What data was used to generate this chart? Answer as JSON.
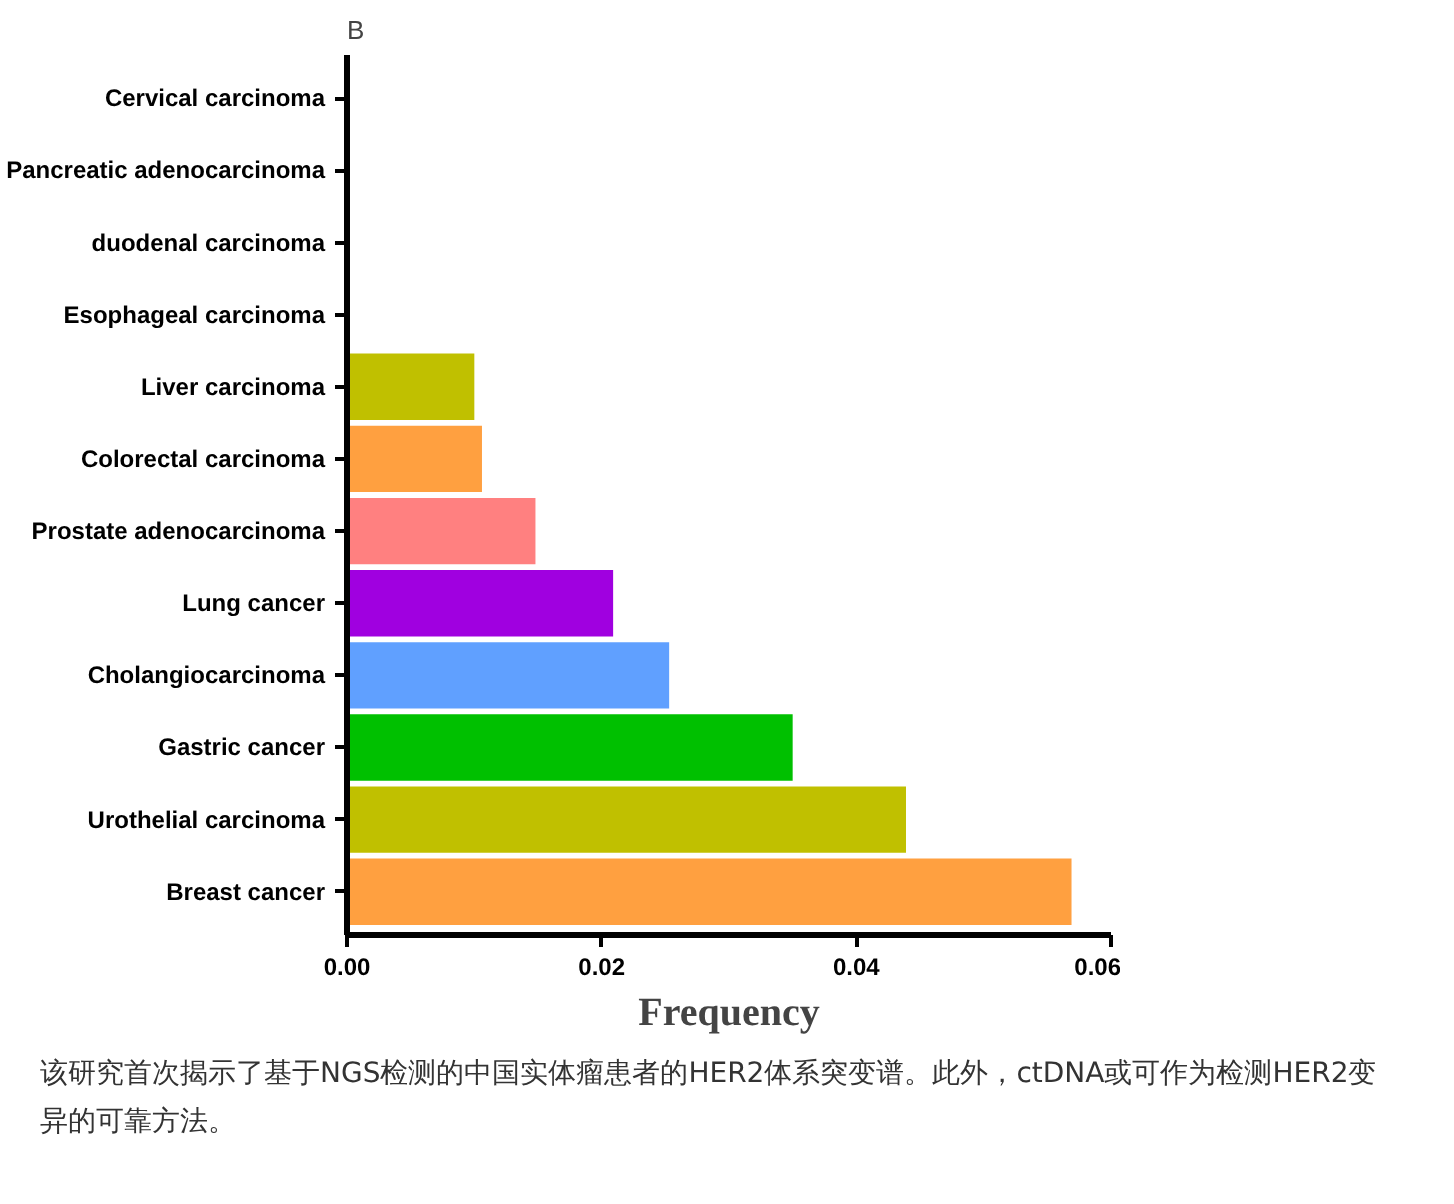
{
  "chart_data": {
    "type": "bar",
    "orientation": "horizontal",
    "title": "B",
    "xlabel": "Frequency",
    "categories": [
      "Cervical carcinoma",
      "Pancreatic adenocarcinoma",
      "duodenal carcinoma",
      "Esophageal carcinoma",
      "Liver carcinoma",
      "Colorectal carcinoma",
      "Prostate adenocarcinoma",
      "Lung cancer",
      "Cholangiocarcinoma",
      "Gastric cancer",
      "Urothelial carcinoma",
      "Breast cancer"
    ],
    "values": [
      0,
      0,
      0,
      0,
      0.01,
      0.0106,
      0.0148,
      0.0209,
      0.0253,
      0.035,
      0.0439,
      0.0569
    ],
    "colors": [
      "#c0c000",
      "#ffa040",
      "#ff8080",
      "#a000e0",
      "#c0c000",
      "#ffa040",
      "#ff8080",
      "#a000e0",
      "#60a0ff",
      "#00c000",
      "#c0c000",
      "#ffa040"
    ],
    "xlim": [
      0,
      0.06
    ],
    "xticks": [
      {
        "value": 0,
        "label": "0.00"
      },
      {
        "value": 0.02,
        "label": "0.02"
      },
      {
        "value": 0.04,
        "label": "0.04"
      },
      {
        "value": 0.06,
        "label": "0.06"
      }
    ],
    "grid": false,
    "legend": false,
    "annotations": [
      "该研究首次揭示了基于NGS检测的中国实体瘤患者的HER2体系突变谱。此外，ctDNA或可作为检测HER2变异的可靠方法。"
    ]
  }
}
